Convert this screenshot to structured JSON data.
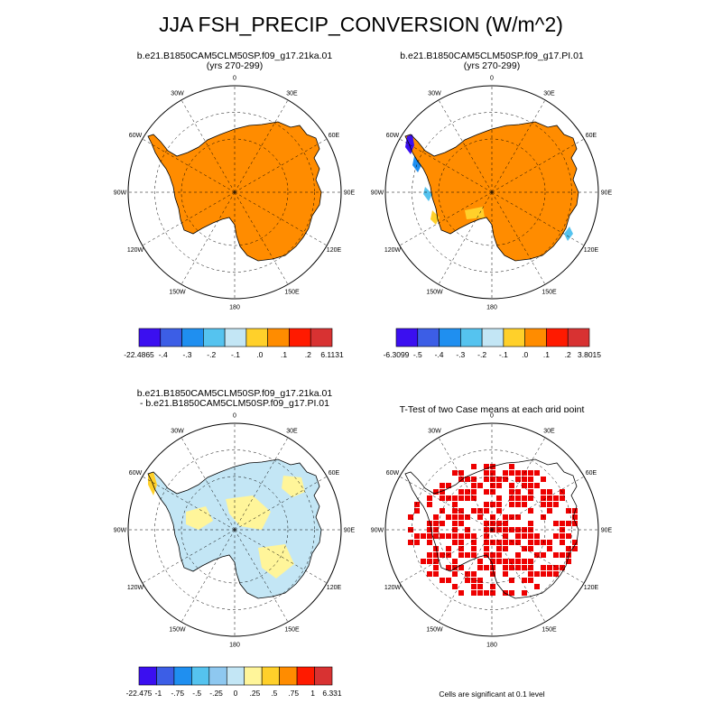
{
  "figure": {
    "title": "JJA FSH_PRECIP_CONVERSION (W/m^2)",
    "lon_labels": [
      "0",
      "30E",
      "60E",
      "90E",
      "120E",
      "150E",
      "180",
      "150W",
      "120W",
      "90W",
      "60W",
      "30W"
    ]
  },
  "panels": [
    {
      "title_line1": "b.e21.B1850CAM5CLM50SP.f09_g17.21ka.01",
      "title_line2": "(yrs 270-299)",
      "colorbar": {
        "colors": [
          "#3b0ff0",
          "#3c5ee6",
          "#1f8ff0",
          "#55c3ef",
          "#c3e6f5",
          "#ffd02a",
          "#ff8c00",
          "#ff1a00",
          "#d83232"
        ],
        "labels": [
          "-22.4865",
          "-.4",
          "-.3",
          "-.2",
          "-.1",
          ".0",
          ".1",
          ".2",
          "6.1131"
        ]
      }
    },
    {
      "title_line1": "b.e21.B1850CAM5CLM50SP.f09_g17.PI.01",
      "title_line2": "(yrs 270-299)",
      "colorbar": {
        "colors": [
          "#3b0ff0",
          "#3c5ee6",
          "#1f8ff0",
          "#55c3ef",
          "#c3e6f5",
          "#ffd02a",
          "#ff8c00",
          "#ff1a00",
          "#d83232"
        ],
        "labels": [
          "-6.3099",
          "-.5",
          "-.4",
          "-.3",
          "-.2",
          "-.1",
          ".0",
          ".1",
          ".2",
          "3.8015"
        ]
      }
    },
    {
      "title_line1": "b.e21.B1850CAM5CLM50SP.f09_g17.21ka.01",
      "title_line2": "- b.e21.B1850CAM5CLM50SP.f09_g17.PI.01",
      "colorbar": {
        "colors": [
          "#3b0ff0",
          "#3c5ee6",
          "#1f8ff0",
          "#55c3ef",
          "#8ec8f0",
          "#c3e6f5",
          "#fff59a",
          "#ffd02a",
          "#ff8c00",
          "#ff1a00",
          "#d83232"
        ],
        "labels": [
          "-22.475",
          "-1",
          "-.75",
          "-.5",
          "-.25",
          "0",
          ".25",
          ".5",
          ".75",
          "1",
          "6.331"
        ]
      }
    },
    {
      "title_line1": "T-Test of two Case means at each grid point",
      "note": "Cells are significant at 0.1 level"
    }
  ]
}
